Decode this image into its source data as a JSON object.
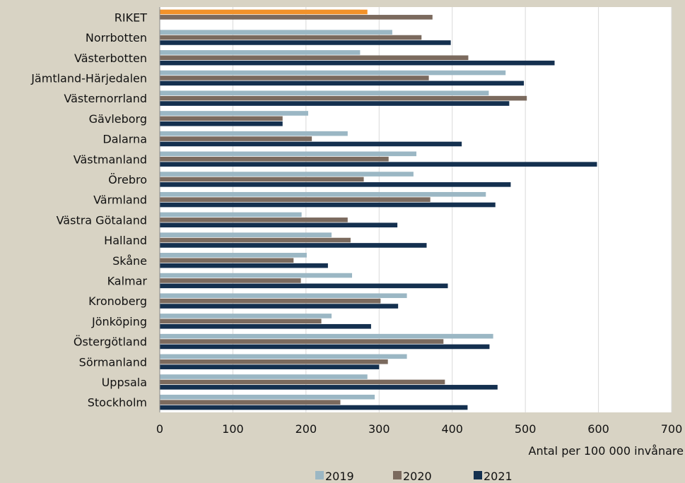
{
  "chart_data": {
    "type": "bar",
    "orientation": "horizontal",
    "categories": [
      "RIKET",
      "Norrbotten",
      "Västerbotten",
      "Jämtland-Härjedalen",
      "Västernorrland",
      "Gävleborg",
      "Dalarna",
      "Västmanland",
      "Örebro",
      "Värmland",
      "Västra Götaland",
      "Halland",
      "Skåne",
      "Kalmar",
      "Kronoberg",
      "Jönköping",
      "Östergötland",
      "Sörmanland",
      "Uppsala",
      "Stockholm"
    ],
    "series": [
      {
        "name": "2019",
        "color": "#9bb7c4",
        "values": [
          274,
          318,
          274,
          473,
          450,
          203,
          257,
          351,
          347,
          446,
          194,
          235,
          201,
          263,
          338,
          235,
          456,
          338,
          284,
          294
        ]
      },
      {
        "name": "2020",
        "color": "#7b6a5e",
        "values": [
          373,
          358,
          422,
          368,
          502,
          168,
          208,
          313,
          279,
          370,
          257,
          261,
          183,
          193,
          302,
          221,
          388,
          312,
          390,
          247
        ]
      },
      {
        "name": "2021",
        "color": "#14304f",
        "values": [
          null,
          398,
          540,
          498,
          478,
          168,
          413,
          598,
          480,
          459,
          325,
          365,
          230,
          394,
          326,
          289,
          451,
          300,
          462,
          421
        ]
      }
    ],
    "highlight": {
      "category": "RIKET",
      "value": 284,
      "color": "#f2922a"
    },
    "xlim": [
      0,
      700
    ],
    "xticks": [
      "0",
      "100",
      "200",
      "300",
      "400",
      "500",
      "600",
      "700"
    ],
    "xlabel": "Antal per 100 000 invånare",
    "ylabel": "",
    "title": "",
    "grid": "vertical",
    "legend_position": "bottom"
  }
}
